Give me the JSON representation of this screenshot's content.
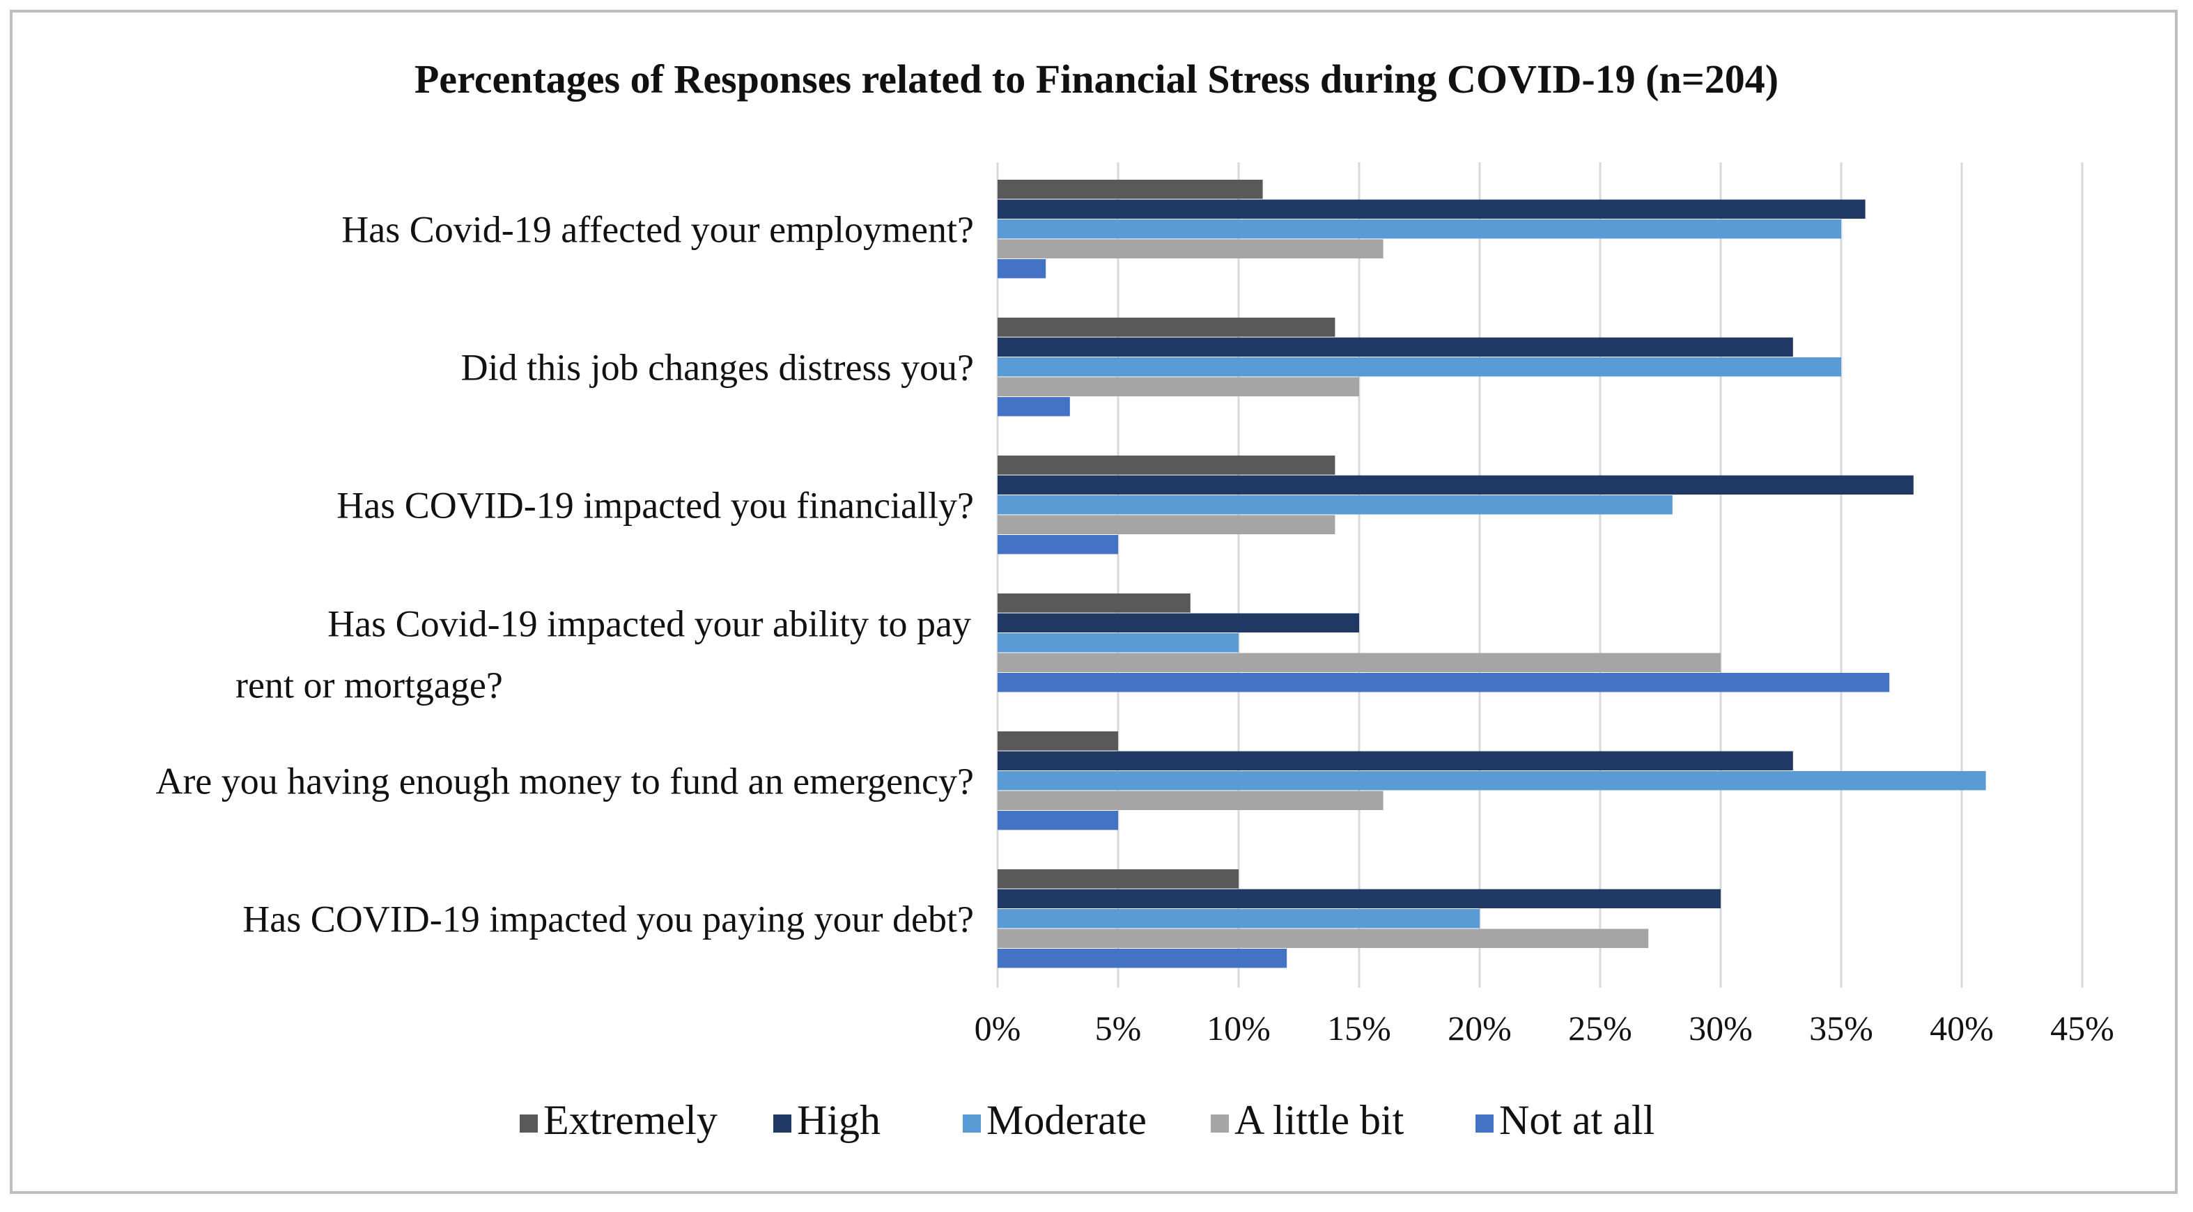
{
  "chart_data": {
    "type": "bar",
    "orientation": "horizontal",
    "title": "Percentages of Responses related to Financial Stress during COVID-19 (n=204)",
    "categories": [
      [
        "Has Covid-19 affected your employment?"
      ],
      [
        "Did this job changes distress you?"
      ],
      [
        "Has COVID-19 impacted you financially?"
      ],
      [
        "Has Covid-19 impacted your ability to pay",
        "rent or mortgage?"
      ],
      [
        "Are you having enough money to fund an emergency?"
      ],
      [
        "Has COVID-19 impacted you paying your debt?"
      ]
    ],
    "series": [
      {
        "name": "Extremely",
        "color": "#595959",
        "values": [
          11,
          14,
          14,
          8,
          5,
          10
        ]
      },
      {
        "name": "High",
        "color": "#203864",
        "values": [
          36,
          33,
          38,
          15,
          33,
          30
        ]
      },
      {
        "name": "Moderate",
        "color": "#5b9bd5",
        "values": [
          35,
          35,
          28,
          10,
          41,
          20
        ]
      },
      {
        "name": "A little bit",
        "color": "#a5a5a5",
        "values": [
          16,
          15,
          14,
          30,
          16,
          27
        ]
      },
      {
        "name": "Not at all",
        "color": "#4472c4",
        "values": [
          2,
          3,
          5,
          37,
          5,
          12
        ]
      }
    ],
    "xticks": [
      "0%",
      "5%",
      "10%",
      "15%",
      "20%",
      "25%",
      "30%",
      "35%",
      "40%",
      "45%"
    ],
    "xlim": [
      0,
      45
    ],
    "grid": true,
    "legend": "bottom"
  }
}
